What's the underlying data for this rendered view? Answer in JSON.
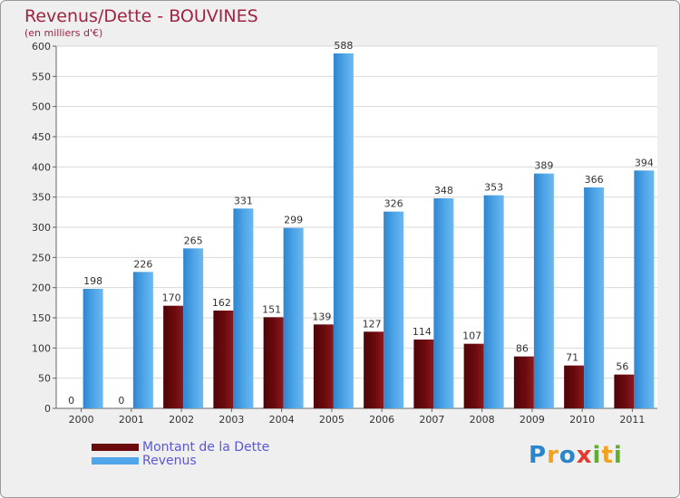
{
  "title": "Revenus/Dette - BOUVINES",
  "subtitle": "(en milliers d'€)",
  "logo": {
    "text": "Proxiti",
    "letters": [
      {
        "ch": "P",
        "color": "#2a86c8"
      },
      {
        "ch": "r",
        "color": "#f2a21d"
      },
      {
        "ch": "o",
        "color": "#2a86c8"
      },
      {
        "ch": "x",
        "color": "#e23a2d"
      },
      {
        "ch": "i",
        "color": "#5fae2e"
      },
      {
        "ch": "t",
        "color": "#f2a21d"
      },
      {
        "ch": "i",
        "color": "#5fae2e"
      }
    ]
  },
  "colors": {
    "dette": "#6b0a0d",
    "revenus": "#4fa6e8"
  },
  "chart_data": {
    "type": "bar",
    "title": "Revenus/Dette - BOUVINES",
    "ylabel": "(en milliers d'€)",
    "xlabel": "",
    "ylim": [
      0,
      600
    ],
    "yticks": [
      0,
      50,
      100,
      150,
      200,
      250,
      300,
      350,
      400,
      450,
      500,
      550,
      600
    ],
    "grid": true,
    "legend_position": "bottom-left",
    "categories": [
      "2000",
      "2001",
      "2002",
      "2003",
      "2004",
      "2005",
      "2006",
      "2007",
      "2008",
      "2009",
      "2010",
      "2011"
    ],
    "series": [
      {
        "name": "Montant de la Dette",
        "values": [
          0,
          0,
          170,
          162,
          151,
          139,
          127,
          114,
          107,
          86,
          71,
          56
        ]
      },
      {
        "name": "Revenus",
        "values": [
          198,
          226,
          265,
          331,
          299,
          588,
          326,
          348,
          353,
          389,
          366,
          394
        ]
      }
    ]
  }
}
